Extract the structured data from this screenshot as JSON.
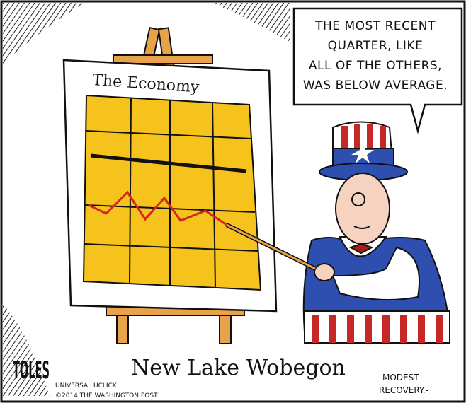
{
  "cartoon": {
    "speech_bubble": {
      "lines": [
        "THE MOST RECENT",
        "QUARTER, LIKE",
        "ALL OF THE OTHERS,",
        "WAS BELOW AVERAGE."
      ]
    },
    "easel_title": "The Economy",
    "caption": "New Lake Wobegon",
    "signature": "TOLES",
    "credits": [
      "UNIVERSAL UCLICK",
      "©2014 THE WASHINGTON POST"
    ],
    "aside": [
      "MODEST",
      "RECOVERY.-"
    ]
  }
}
